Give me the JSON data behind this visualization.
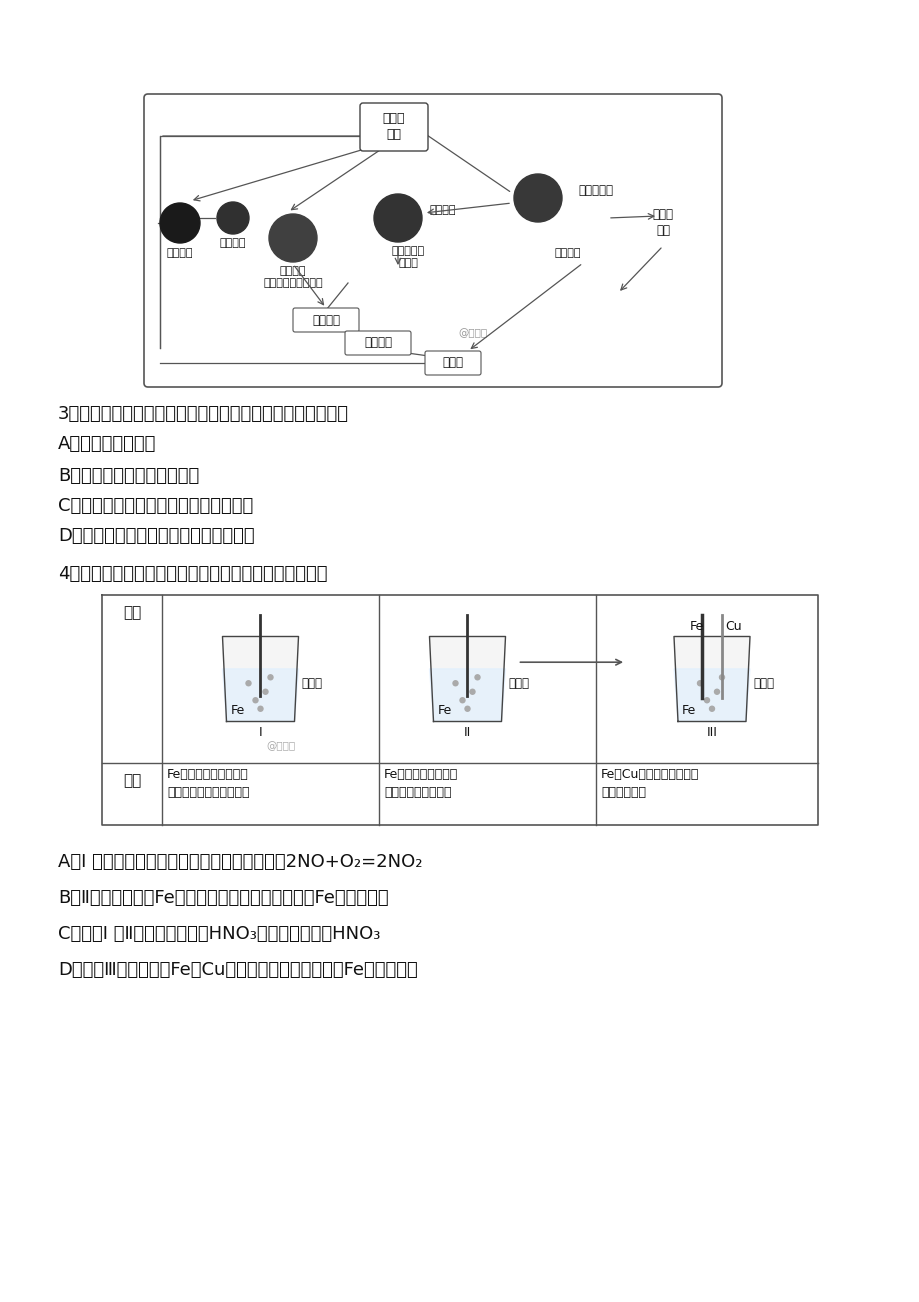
{
  "page_bg": "#ffffff",
  "q3_text": "3、下列关于自然界中氮循环（如右图）的说法不正确的是：",
  "q3_A": "A、氮元素均被氧化",
  "q3_B": "B、工业合成氨属于人工固氮",
  "q3_C": "C、含氮无机物和含氮有机物可相互转化",
  "q3_D": "D、砸、氢、氧三种元素也参与了氮循环",
  "q4_text": "4、在通风橱中进行下列实验：下列说法中不正确的是：",
  "q4_A": "A、Ⅰ 种气体有无色变红棕色的化学方程式为：2NO+O₂=2NO₂",
  "q4_B": "B、Ⅱ中的现象说明Fe表面形成致密的氧化层，阻止Fe进一步反应",
  "q4_C": "C、对比Ⅰ 、Ⅱ中现象，说明稀HNO₃的氧化性强于浓HNO₃",
  "q4_D": "D、针对Ⅲ中现象，在Fe、Cu之间连接电流计，可判断Fe是否被氧化",
  "phen1_l1": "Fe表面产生大量无色气",
  "phen1_l2": "泡，液面上方变为红棕色",
  "phen2_l1": "Fe表面产生少量红棕",
  "phen2_l2": "色气泡后，迅速停止",
  "phen3_l1": "Fe、Cu接触后，其表面产",
  "phen3_l2": "生红棕色气泡",
  "label_buzhou": "步骤",
  "label_xianxiang": "现象",
  "label_daqi_n": "大气中\n的氮",
  "label_protein": "制造蛋白质",
  "label_animal_eat": "动物摄食",
  "label_animal_waste": "动物排泴物\n及遗体",
  "label_plant": "植物遗体",
  "label_bacteria": "被细菌\n分解",
  "label_lightning": "雷电作用",
  "label_artificial": "人工固氮",
  "label_fixation": "固氮作用\n（豆科植物的根瘰）",
  "label_ammonium": "氨及铵盐",
  "label_nitrite": "亚硝酸盐",
  "label_nitrate": "硝酸盐",
  "label_watermark": "@正确云",
  "label_xi_hno3": "稀硝酸",
  "label_nong_hno3": "浓硝酸",
  "label_nong_hno3b": "浓硝酸",
  "label_fe": "Fe",
  "label_cu": "Cu",
  "label_I": "I",
  "label_II": "II",
  "label_III": "III"
}
